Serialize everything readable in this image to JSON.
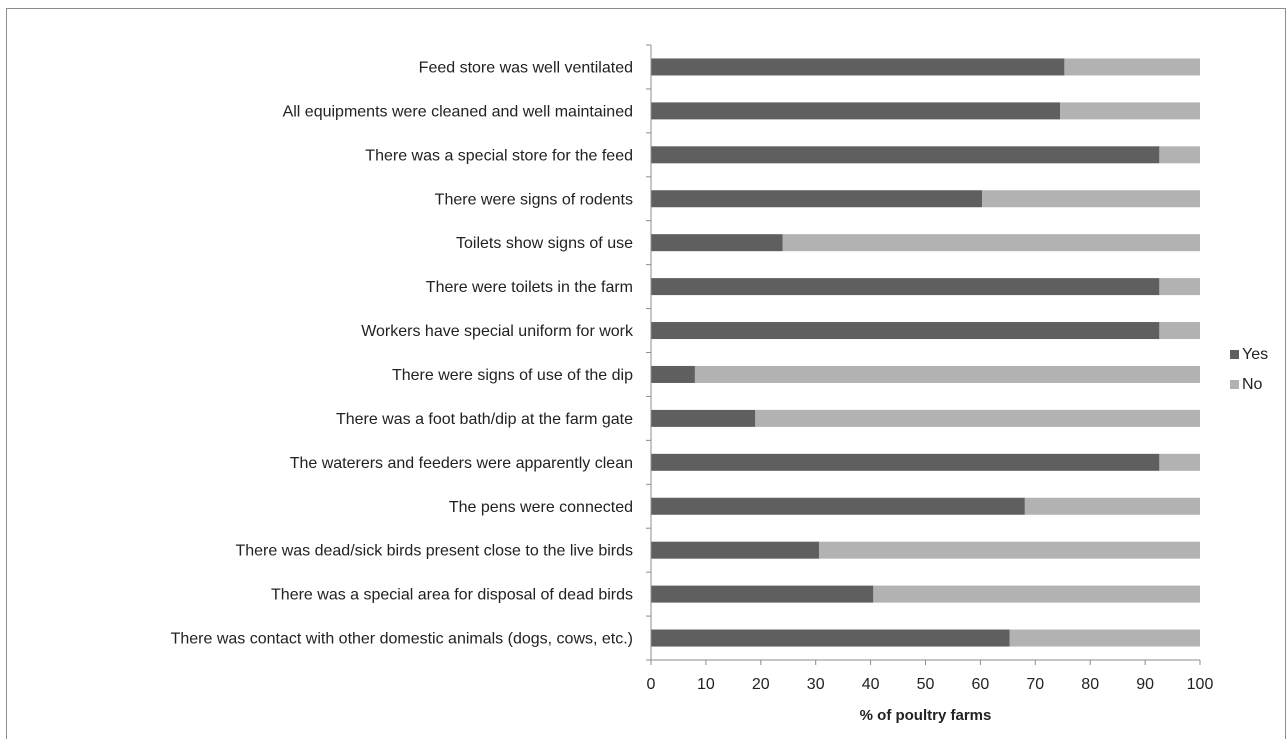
{
  "chart_data": {
    "type": "bar",
    "orientation": "horizontal",
    "stacked": true,
    "categories": [
      "There was contact with other domestic animals (dogs, cows, etc.)",
      "There was a special area for disposal of dead birds",
      "There was dead/sick birds present close to the live birds",
      "The pens were connected",
      "The waterers and feeders were apparently clean",
      "There was a foot bath/dip at the farm gate",
      "There were signs of use of the dip",
      "Workers have special uniform for work",
      "There were toilets in the farm",
      "Toilets show signs of use",
      "There were signs of rodents",
      "There was a special store for the feed",
      "All equipments were cleaned and well maintained",
      "Feed store was well ventilated"
    ],
    "series": [
      {
        "name": "Yes",
        "color": "#5f5f5f",
        "values": [
          65.3,
          40.5,
          30.6,
          68.1,
          92.6,
          19.0,
          8.0,
          92.6,
          92.6,
          24.0,
          60.3,
          92.6,
          74.5,
          75.3
        ]
      },
      {
        "name": "No",
        "color": "#b2b2b2",
        "values": [
          34.7,
          59.5,
          69.4,
          31.9,
          7.4,
          81.0,
          92.0,
          7.4,
          7.4,
          76.0,
          39.7,
          7.4,
          25.5,
          24.7
        ]
      }
    ],
    "xlabel": "% of poultry farms",
    "ylabel": "",
    "xlim": [
      0,
      100
    ],
    "xticks": [
      0,
      10,
      20,
      30,
      40,
      50,
      60,
      70,
      80,
      90,
      100
    ],
    "grid": false,
    "legend_position": "right"
  }
}
